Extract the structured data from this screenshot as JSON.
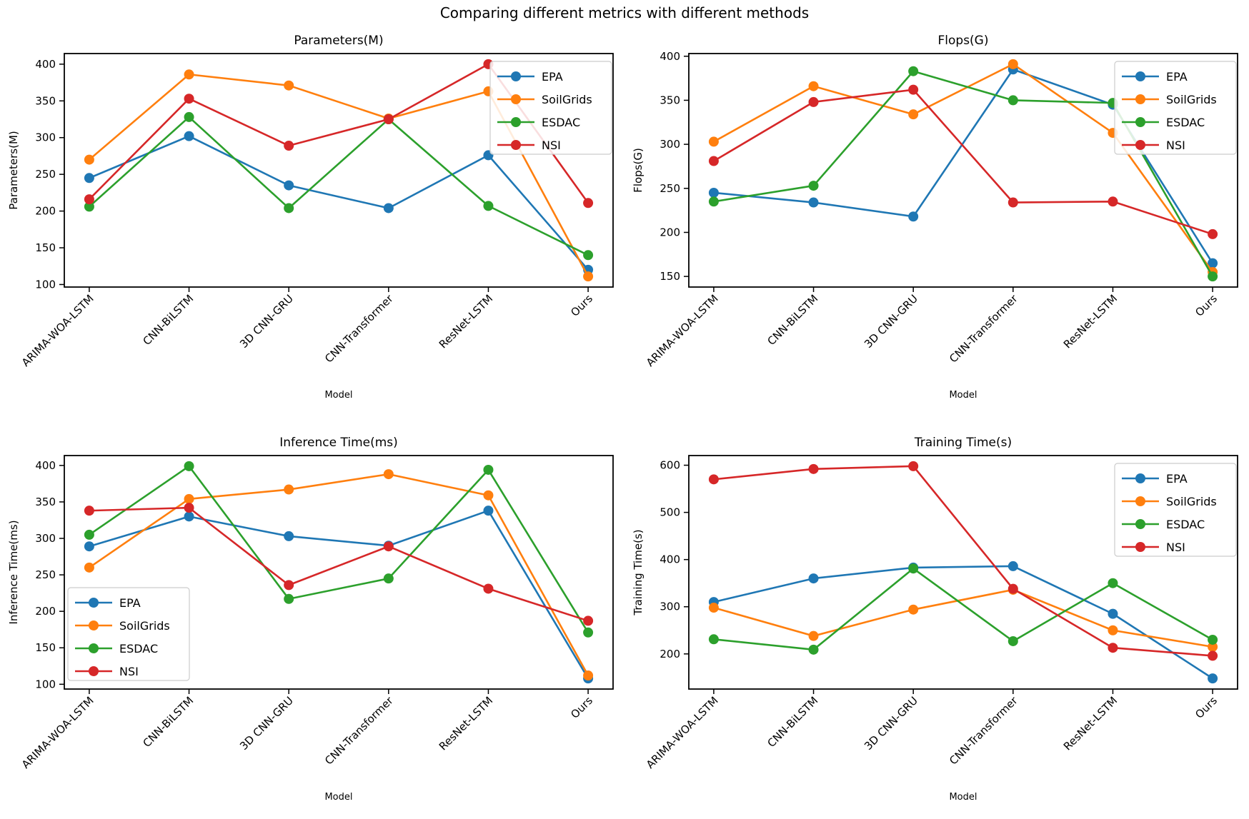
{
  "figure": {
    "title": "Comparing different metrics with different methods"
  },
  "series_colors": {
    "EPA": "#1f77b4",
    "SoilGrids": "#ff7f0e",
    "ESDAC": "#2ca02c",
    "NSI": "#d62728"
  },
  "chart_data": [
    {
      "type": "line",
      "title": "Parameters(M)",
      "ylabel": "Parameters(M)",
      "xlabel": "Model",
      "categories": [
        "ARIMA-WOA-LSTM",
        "CNN-BiLSTM",
        "3D CNN-GRU",
        "CNN-Transformer",
        "ResNet-LSTM",
        "Ours"
      ],
      "series": [
        {
          "name": "EPA",
          "color": "#1f77b4",
          "values": [
            245,
            302,
            235,
            204,
            276,
            120
          ]
        },
        {
          "name": "SoilGrids",
          "color": "#ff7f0e",
          "values": [
            270,
            386,
            371,
            326,
            363,
            111
          ]
        },
        {
          "name": "ESDAC",
          "color": "#2ca02c",
          "values": [
            206,
            328,
            204,
            325,
            207,
            140
          ]
        },
        {
          "name": "NSI",
          "color": "#d62728",
          "values": [
            216,
            353,
            289,
            325,
            400,
            211
          ]
        }
      ],
      "yticks": [
        100,
        150,
        200,
        250,
        300,
        350,
        400
      ],
      "legend_position": "upper-right",
      "grid": false
    },
    {
      "type": "line",
      "title": "Flops(G)",
      "ylabel": "Flops(G)",
      "xlabel": "Model",
      "categories": [
        "ARIMA-WOA-LSTM",
        "CNN-BiLSTM",
        "3D CNN-GRU",
        "CNN-Transformer",
        "ResNet-LSTM",
        "Ours"
      ],
      "series": [
        {
          "name": "EPA",
          "color": "#1f77b4",
          "values": [
            245,
            234,
            218,
            385,
            345,
            165
          ]
        },
        {
          "name": "SoilGrids",
          "color": "#ff7f0e",
          "values": [
            303,
            366,
            334,
            391,
            313,
            155
          ]
        },
        {
          "name": "ESDAC",
          "color": "#2ca02c",
          "values": [
            235,
            253,
            383,
            350,
            347,
            150
          ]
        },
        {
          "name": "NSI",
          "color": "#d62728",
          "values": [
            281,
            348,
            362,
            234,
            235,
            198
          ]
        }
      ],
      "yticks": [
        150,
        200,
        250,
        300,
        350,
        400
      ],
      "legend_position": "upper-right",
      "grid": false
    },
    {
      "type": "line",
      "title": "Inference Time(ms)",
      "ylabel": "Inference Time(ms)",
      "xlabel": "Model",
      "categories": [
        "ARIMA-WOA-LSTM",
        "CNN-BiLSTM",
        "3D CNN-GRU",
        "CNN-Transformer",
        "ResNet-LSTM",
        "Ours"
      ],
      "series": [
        {
          "name": "EPA",
          "color": "#1f77b4",
          "values": [
            289,
            330,
            303,
            290,
            338,
            108
          ]
        },
        {
          "name": "SoilGrids",
          "color": "#ff7f0e",
          "values": [
            260,
            354,
            367,
            388,
            359,
            112
          ]
        },
        {
          "name": "ESDAC",
          "color": "#2ca02c",
          "values": [
            305,
            399,
            217,
            245,
            394,
            171
          ]
        },
        {
          "name": "NSI",
          "color": "#d62728",
          "values": [
            338,
            342,
            236,
            289,
            231,
            187
          ]
        }
      ],
      "yticks": [
        100,
        150,
        200,
        250,
        300,
        350,
        400
      ],
      "legend_position": "lower-left",
      "grid": false
    },
    {
      "type": "line",
      "title": "Training Time(s)",
      "ylabel": "Training Time(s)",
      "xlabel": "Model",
      "categories": [
        "ARIMA-WOA-LSTM",
        "CNN-BiLSTM",
        "3D CNN-GRU",
        "CNN-Transformer",
        "ResNet-LSTM",
        "Ours"
      ],
      "series": [
        {
          "name": "EPA",
          "color": "#1f77b4",
          "values": [
            310,
            360,
            383,
            386,
            285,
            148
          ]
        },
        {
          "name": "SoilGrids",
          "color": "#ff7f0e",
          "values": [
            298,
            238,
            294,
            336,
            250,
            215
          ]
        },
        {
          "name": "ESDAC",
          "color": "#2ca02c",
          "values": [
            231,
            209,
            381,
            227,
            350,
            230
          ]
        },
        {
          "name": "NSI",
          "color": "#d62728",
          "values": [
            570,
            592,
            598,
            338,
            213,
            196
          ]
        }
      ],
      "yticks": [
        200,
        300,
        400,
        500,
        600
      ],
      "legend_position": "upper-right",
      "grid": false
    }
  ]
}
